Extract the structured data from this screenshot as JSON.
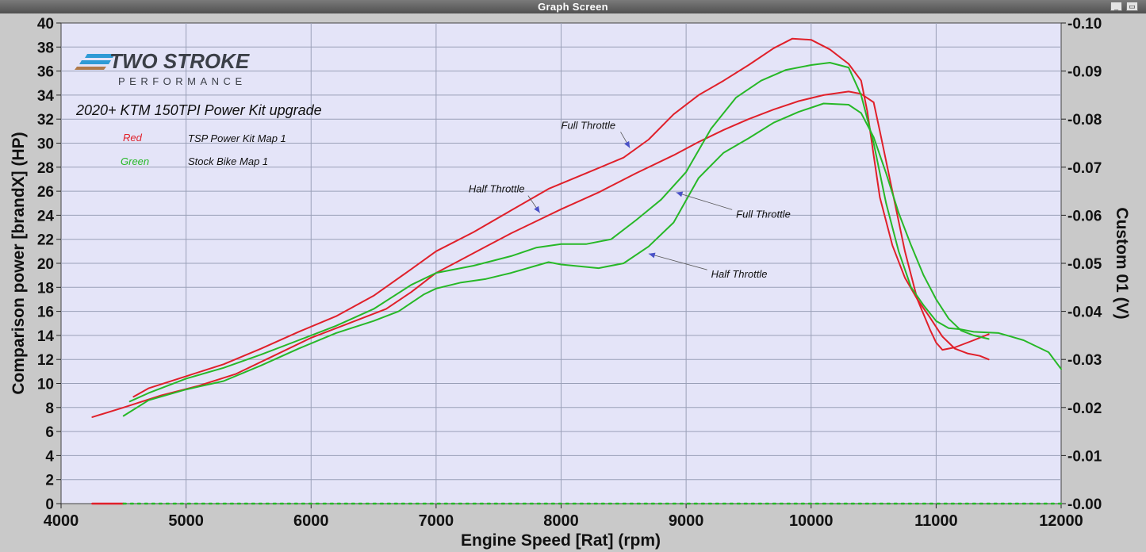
{
  "window": {
    "title": "Graph Screen"
  },
  "logo": {
    "line1": "TWO STROKE",
    "line2": "PERFORMANCE"
  },
  "legend": {
    "title": "2020+ KTM 150TPI Power Kit upgrade",
    "entries": [
      {
        "color_name": "Red",
        "description": "TSP Power Kit Map 1",
        "color": "#e0202a"
      },
      {
        "color_name": "Green",
        "description": "Stock Bike Map 1",
        "color": "#27b827"
      }
    ]
  },
  "colors": {
    "plot_bg": "#e4e4f8",
    "grid": "#9aa0b8",
    "red": "#e0202a",
    "green": "#27b827",
    "annotation_arrow": "#4a52c8"
  },
  "chart_data": {
    "type": "line",
    "xlabel": "Engine Speed [Rat] (rpm)",
    "ylabel": "Comparison power [brandX] (HP)",
    "y2label": "Custom 01 (V)",
    "xlim": [
      4000,
      12000
    ],
    "ylim": [
      0,
      40
    ],
    "y2lim": [
      0.0,
      0.1
    ],
    "x_ticks": [
      "4000",
      "5000",
      "6000",
      "7000",
      "8000",
      "9000",
      "10000",
      "11000",
      "12000"
    ],
    "y_ticks": [
      "0",
      "2",
      "4",
      "6",
      "8",
      "10",
      "12",
      "14",
      "16",
      "18",
      "20",
      "22",
      "24",
      "26",
      "28",
      "30",
      "32",
      "34",
      "36",
      "38",
      "40"
    ],
    "y2_ticks": [
      "0.00",
      "0.01",
      "0.02",
      "0.03",
      "0.04",
      "0.05",
      "0.06",
      "0.07",
      "0.08",
      "0.09",
      "0.10"
    ],
    "grid": true,
    "series": [
      {
        "name": "TSP Power Kit Map 1",
        "throttle": "Full Throttle",
        "color": "red",
        "x": [
          4580,
          4700,
          5000,
          5300,
          5600,
          5900,
          6200,
          6500,
          6800,
          7000,
          7300,
          7600,
          7900,
          8200,
          8500,
          8700,
          8900,
          9100,
          9300,
          9500,
          9700,
          9850,
          10000,
          10150,
          10300,
          10400,
          10450,
          10500,
          10550,
          10650,
          10750,
          10850,
          10950,
          11050,
          11150,
          11250,
          11350,
          11420
        ],
        "y": [
          8.9,
          9.6,
          10.6,
          11.6,
          12.9,
          14.3,
          15.6,
          17.3,
          19.5,
          21.0,
          22.6,
          24.4,
          26.2,
          27.5,
          28.8,
          30.3,
          32.4,
          34.0,
          35.2,
          36.5,
          37.9,
          38.7,
          38.6,
          37.8,
          36.6,
          35.2,
          32.6,
          29.0,
          25.5,
          21.5,
          18.8,
          17.0,
          15.5,
          13.9,
          12.9,
          12.5,
          12.3,
          12.0
        ]
      },
      {
        "name": "TSP Power Kit Map 1",
        "throttle": "Half Throttle",
        "color": "red",
        "x": [
          4250,
          4500,
          4800,
          5100,
          5400,
          5700,
          6000,
          6300,
          6600,
          6800,
          7000,
          7200,
          7400,
          7600,
          7800,
          8000,
          8300,
          8600,
          8900,
          9100,
          9300,
          9500,
          9700,
          9900,
          10100,
          10300,
          10400,
          10500,
          10550,
          10650,
          10750,
          10850,
          10950,
          11000,
          11050,
          11150,
          11300,
          11420
        ],
        "y": [
          7.2,
          8.0,
          9.0,
          9.8,
          10.8,
          12.3,
          13.8,
          15.0,
          16.2,
          17.6,
          19.2,
          20.3,
          21.4,
          22.5,
          23.5,
          24.5,
          25.9,
          27.5,
          29.0,
          30.1,
          31.1,
          32.0,
          32.8,
          33.5,
          34.0,
          34.3,
          34.1,
          33.4,
          31.0,
          26.0,
          21.0,
          17.0,
          14.5,
          13.4,
          12.8,
          13.0,
          13.6,
          14.1
        ]
      },
      {
        "name": "Stock Bike Map 1",
        "throttle": "Full Throttle",
        "color": "green",
        "x": [
          4550,
          4700,
          5000,
          5300,
          5600,
          5900,
          6200,
          6500,
          6800,
          7000,
          7300,
          7600,
          7800,
          8000,
          8200,
          8400,
          8600,
          8800,
          9000,
          9200,
          9400,
          9600,
          9800,
          10000,
          10150,
          10300,
          10400,
          10500,
          10600,
          10700,
          10800,
          10900,
          11000,
          11100,
          11200,
          11300,
          11500,
          11700,
          11900,
          12000
        ],
        "y": [
          8.5,
          9.2,
          10.4,
          11.3,
          12.4,
          13.6,
          14.8,
          16.2,
          18.2,
          19.2,
          19.8,
          20.6,
          21.3,
          21.6,
          21.6,
          22.0,
          23.6,
          25.3,
          27.6,
          31.2,
          33.8,
          35.2,
          36.1,
          36.5,
          36.7,
          36.3,
          34.0,
          30.0,
          25.0,
          21.0,
          18.0,
          16.5,
          15.2,
          14.6,
          14.5,
          14.3,
          14.2,
          13.6,
          12.6,
          11.2
        ]
      },
      {
        "name": "Stock Bike Map 1",
        "throttle": "Half Throttle",
        "color": "green",
        "x": [
          4500,
          4700,
          5000,
          5300,
          5600,
          5900,
          6200,
          6500,
          6700,
          6900,
          7000,
          7200,
          7400,
          7600,
          7800,
          7900,
          8000,
          8300,
          8500,
          8700,
          8900,
          9100,
          9300,
          9500,
          9700,
          9900,
          10100,
          10300,
          10400,
          10500,
          10600,
          10700,
          10800,
          10900,
          11000,
          11100,
          11200,
          11300,
          11420
        ],
        "y": [
          7.3,
          8.6,
          9.5,
          10.2,
          11.5,
          12.9,
          14.2,
          15.2,
          16.0,
          17.4,
          17.9,
          18.4,
          18.7,
          19.2,
          19.8,
          20.1,
          19.9,
          19.6,
          20.0,
          21.4,
          23.4,
          27.1,
          29.2,
          30.4,
          31.7,
          32.6,
          33.3,
          33.2,
          32.5,
          30.5,
          27.5,
          24.2,
          21.5,
          19.0,
          17.0,
          15.4,
          14.4,
          14.0,
          13.7
        ]
      },
      {
        "name": "Custom 01",
        "color": "red",
        "axis": "y2",
        "x": [
          4250,
          4500
        ],
        "y": [
          0.0,
          0.0
        ]
      },
      {
        "name": "Custom 01",
        "color": "green",
        "axis": "y2",
        "x": [
          4500,
          5000,
          6000,
          7000,
          8000,
          9000,
          10000,
          11000,
          12000
        ],
        "y": [
          0.0,
          0.0,
          0.0,
          0.0,
          0.0,
          0.0,
          0.0,
          0.0,
          0.0
        ]
      }
    ],
    "annotations": [
      {
        "text": "Full Throttle",
        "x": 8000,
        "y": 31.2,
        "arrow_to": [
          8550,
          29.6
        ]
      },
      {
        "text": "Half Throttle",
        "x": 7260,
        "y": 25.9,
        "arrow_to": [
          7830,
          24.2
        ]
      },
      {
        "text": "Full Throttle",
        "x": 9400,
        "y": 23.8,
        "arrow_to": [
          8920,
          25.9
        ]
      },
      {
        "text": "Half Throttle",
        "x": 9200,
        "y": 18.8,
        "arrow_to": [
          8700,
          20.8
        ]
      }
    ]
  }
}
